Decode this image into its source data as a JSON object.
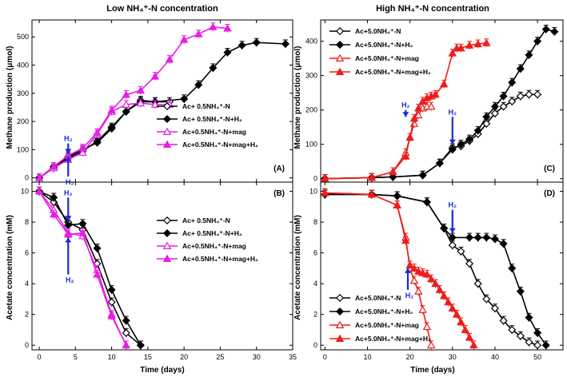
{
  "chart_data": [
    {
      "id": "A",
      "type": "line",
      "title": "Low NH4+-N concentration",
      "panel_label": "(A)",
      "xlabel": "",
      "ylabel": "Methane production (μmol)",
      "xlim": [
        -1,
        35
      ],
      "ylim": [
        -15,
        560
      ],
      "xticks": [
        0,
        5,
        10,
        15,
        20,
        25,
        30,
        35
      ],
      "yticks": [
        0,
        100,
        200,
        300,
        400,
        500
      ],
      "show_xtick_labels": false,
      "legend_position": "center-right",
      "annotations": [
        {
          "text": "H2",
          "x": 4,
          "direction": "down",
          "y_from": 122,
          "y_to": 86
        },
        {
          "text": "H2",
          "x": 4,
          "direction": "up",
          "y_from": 5,
          "y_to": 75
        }
      ],
      "series": [
        {
          "name": "Ac+ 0.5NH4+-N",
          "marker": "diamond",
          "filled": false,
          "color": "#000000",
          "x": [
            0,
            2,
            4,
            6,
            8,
            10,
            12,
            14,
            16,
            18
          ],
          "y": [
            0,
            35,
            70,
            95,
            130,
            180,
            235,
            270,
            270,
            270
          ]
        },
        {
          "name": "Ac+ 0.5NH4+-N+H2",
          "marker": "diamond",
          "filled": true,
          "color": "#000000",
          "x": [
            0,
            2,
            4,
            6,
            8,
            10,
            12,
            14,
            16,
            20,
            22,
            24,
            26,
            28,
            30,
            34
          ],
          "y": [
            0,
            40,
            75,
            100,
            125,
            175,
            235,
            275,
            270,
            280,
            330,
            390,
            445,
            470,
            480,
            475
          ]
        },
        {
          "name": "Ac+0.5NH4+-N+mag",
          "marker": "triangle",
          "filled": false,
          "color": "#e61ee6",
          "x": [
            0,
            2,
            4,
            6,
            8,
            10,
            12,
            14,
            16,
            18
          ],
          "y": [
            0,
            35,
            65,
            90,
            155,
            235,
            260,
            265,
            260,
            260
          ]
        },
        {
          "name": "Ac+0.5NH4+-N+mag+H2",
          "marker": "triangle",
          "filled": true,
          "color": "#e61ee6",
          "x": [
            0,
            2,
            4,
            6,
            8,
            10,
            12,
            14,
            16,
            18,
            20,
            22,
            24,
            26
          ],
          "y": [
            0,
            40,
            80,
            105,
            160,
            240,
            295,
            310,
            360,
            420,
            490,
            510,
            535,
            530
          ]
        }
      ]
    },
    {
      "id": "B",
      "type": "line",
      "title": "",
      "panel_label": "(B)",
      "xlabel": "Time (days)",
      "ylabel": "Acetate concentration (mM)",
      "xlim": [
        -1,
        35
      ],
      "ylim": [
        -0.3,
        10.6
      ],
      "xticks": [
        0,
        5,
        10,
        15,
        20,
        25,
        30,
        35
      ],
      "yticks": [
        0,
        2,
        4,
        6,
        8,
        10
      ],
      "show_xtick_labels": true,
      "legend_position": "center-right",
      "annotations": [
        {
          "text": "H2",
          "x": 4,
          "direction": "down",
          "y_from": 9.6,
          "y_to": 8.1
        },
        {
          "text": "H2",
          "x": 4,
          "direction": "up",
          "y_from": 4.6,
          "y_to": 7.0
        }
      ],
      "series": [
        {
          "name": "Ac+ 0.5NH4+-N",
          "marker": "diamond",
          "filled": false,
          "color": "#000000",
          "x": [
            0,
            2,
            4,
            6,
            8,
            10,
            12,
            14
          ],
          "y": [
            10.0,
            9.3,
            8.0,
            7.5,
            5.3,
            2.8,
            0.8,
            0
          ]
        },
        {
          "name": "Ac+ 0.5NH4+-N+H2",
          "marker": "diamond",
          "filled": true,
          "color": "#000000",
          "x": [
            0,
            2,
            4,
            6,
            8,
            10,
            12,
            14
          ],
          "y": [
            10.0,
            9.6,
            7.8,
            7.9,
            6.3,
            3.6,
            1.6,
            0
          ]
        },
        {
          "name": "Ac+0.5NH4+-N+mag",
          "marker": "triangle",
          "filled": false,
          "color": "#e61ee6",
          "x": [
            0,
            2,
            4,
            6,
            8,
            10,
            12
          ],
          "y": [
            10.0,
            8.8,
            7.3,
            7.1,
            4.9,
            2.0,
            0
          ]
        },
        {
          "name": "Ac+0.5NH4+-N+mag+H2",
          "marker": "triangle",
          "filled": true,
          "color": "#e61ee6",
          "x": [
            0,
            2,
            4,
            6,
            8,
            10,
            12
          ],
          "y": [
            10.0,
            8.5,
            7.2,
            7.3,
            4.6,
            1.9,
            0
          ]
        }
      ]
    },
    {
      "id": "C",
      "type": "line",
      "title": "High NH4+-N concentration",
      "panel_label": "(C)",
      "xlabel": "",
      "ylabel": "",
      "xlim": [
        -1,
        56
      ],
      "ylim": [
        -10,
        462
      ],
      "xticks": [
        0,
        10,
        20,
        30,
        40,
        50
      ],
      "yticks": [
        0,
        100,
        200,
        300,
        400
      ],
      "show_xtick_labels": false,
      "legend_position": "top-left",
      "annotations": [
        {
          "text": "H2",
          "x": 19,
          "direction": "down",
          "y_from": 200,
          "y_to": 180
        },
        {
          "text": "H2",
          "x": 30,
          "direction": "down",
          "y_from": 180,
          "y_to": 100
        }
      ],
      "series": [
        {
          "name": "Ac+5.0NH4+-N",
          "marker": "diamond",
          "filled": false,
          "color": "#000000",
          "x": [
            0,
            11,
            16,
            23,
            27,
            30,
            32,
            34,
            36,
            38,
            40,
            42,
            44,
            46,
            48,
            50
          ],
          "y": [
            0,
            3,
            5,
            10,
            45,
            90,
            95,
            110,
            130,
            160,
            190,
            210,
            225,
            240,
            245,
            245
          ]
        },
        {
          "name": "Ac+5.0NH4+-N+H2",
          "marker": "diamond",
          "filled": true,
          "color": "#000000",
          "x": [
            0,
            11,
            16,
            23,
            27,
            30,
            32,
            34,
            36,
            38,
            40,
            42,
            44,
            46,
            48,
            50,
            52,
            54
          ],
          "y": [
            0,
            3,
            5,
            10,
            45,
            85,
            100,
            115,
            140,
            180,
            210,
            240,
            280,
            320,
            360,
            400,
            435,
            428
          ]
        },
        {
          "name": "Ac+5.0NH4+-N+mag",
          "marker": "triangle",
          "filled": false,
          "color": "#ee1c1c",
          "x": [
            0,
            11,
            16,
            19,
            20,
            21,
            22,
            23,
            24,
            25
          ],
          "y": [
            0,
            3,
            20,
            75,
            120,
            160,
            185,
            205,
            210,
            210
          ]
        },
        {
          "name": "Ac+5.0NH4+-N+mag+H2",
          "marker": "triangle",
          "filled": true,
          "color": "#ee1c1c",
          "x": [
            0,
            11,
            16,
            19,
            20,
            21,
            22,
            23,
            24,
            25,
            26,
            28,
            30,
            31,
            32,
            34,
            36,
            38
          ],
          "y": [
            0,
            3,
            20,
            65,
            120,
            175,
            205,
            225,
            235,
            240,
            245,
            275,
            365,
            380,
            380,
            388,
            392,
            395
          ]
        }
      ]
    },
    {
      "id": "D",
      "type": "line",
      "title": "",
      "panel_label": "(D)",
      "xlabel": "Time (days)",
      "ylabel": "",
      "xlim": [
        -1,
        56
      ],
      "ylim": [
        -0.3,
        10.6
      ],
      "xticks": [
        0,
        10,
        20,
        30,
        40,
        50
      ],
      "yticks": [
        0,
        2,
        4,
        6,
        8,
        10
      ],
      "show_xtick_labels": true,
      "legend_position": "bottom-left",
      "annotations": [
        {
          "text": "H2",
          "x": 19.5,
          "direction": "up",
          "y_from": 3.6,
          "y_to": 5.0
        },
        {
          "text": "H2",
          "x": 30,
          "direction": "down",
          "y_from": 8.8,
          "y_to": 7.3
        }
      ],
      "series": [
        {
          "name": "Ac+5.0NH4+-N",
          "marker": "diamond",
          "filled": false,
          "color": "#000000",
          "x": [
            0,
            11,
            17,
            24,
            28,
            30,
            32,
            34,
            36,
            38,
            40,
            42,
            44,
            46,
            48,
            50
          ],
          "y": [
            9.8,
            9.8,
            9.7,
            9.3,
            7.6,
            6.5,
            6.1,
            5.3,
            4.0,
            3.0,
            2.4,
            1.6,
            1.0,
            0.6,
            0.2,
            0
          ]
        },
        {
          "name": "Ac+5.0NH4+-N+H2",
          "marker": "diamond",
          "filled": true,
          "color": "#000000",
          "x": [
            0,
            11,
            17,
            24,
            28,
            30,
            34,
            36,
            38,
            40,
            42,
            44,
            46,
            48,
            50,
            52
          ],
          "y": [
            9.8,
            9.8,
            9.7,
            9.3,
            7.6,
            7.0,
            7.0,
            7.0,
            7.0,
            6.9,
            6.6,
            5.0,
            3.5,
            1.8,
            0.8,
            0
          ]
        },
        {
          "name": "Ac+5.0NH4+-N+mag",
          "marker": "triangle",
          "filled": false,
          "color": "#ee1c1c",
          "x": [
            0,
            11,
            17,
            19,
            20,
            21,
            22,
            23,
            24,
            25
          ],
          "y": [
            9.9,
            9.8,
            9.1,
            7.0,
            5.0,
            4.2,
            3.5,
            2.3,
            1.2,
            0
          ]
        },
        {
          "name": "Ac+5.0NH4+-N+mag+H2",
          "marker": "triangle",
          "filled": true,
          "color": "#ee1c1c",
          "x": [
            0,
            11,
            17,
            19,
            20,
            21,
            22,
            23,
            24,
            25,
            26,
            27,
            28,
            29,
            30,
            31,
            32,
            33,
            34,
            35
          ],
          "y": [
            9.9,
            9.8,
            9.1,
            6.8,
            5.2,
            5.0,
            4.8,
            4.7,
            4.6,
            4.3,
            4.0,
            3.6,
            3.2,
            2.8,
            2.4,
            2.0,
            1.5,
            1.0,
            0.5,
            0
          ]
        }
      ]
    }
  ],
  "legend": {
    "low_labels": [
      "Ac+ 0.5NH₄⁺-N",
      "Ac+ 0.5NH₄⁺-N+H₂",
      "Ac+0.5NH₄⁺-N+mag",
      "Ac+0.5NH₄⁺-N+mag+H₂"
    ],
    "high_labels": [
      "Ac+5.0NH₄⁺-N",
      "Ac+5.0NH₄⁺-N+H₂",
      "Ac+5.0NH₄⁺-N+mag",
      "Ac+5.0NH₄⁺-N+mag+H₂"
    ]
  },
  "labels": {
    "title_left": "Low NH₄⁺-N concentration",
    "title_right": "High NH₄⁺-N concentration",
    "ylabel_top": "Methane production (μmol)",
    "ylabel_bottom": "Acetate concentration (mM)",
    "xlabel": "Time (days)",
    "annotation": "H₂"
  },
  "colors": {
    "black": "#000000",
    "magenta": "#e61ee6",
    "red": "#ee1c1c",
    "annotation_blue": "#1a2bd1"
  }
}
